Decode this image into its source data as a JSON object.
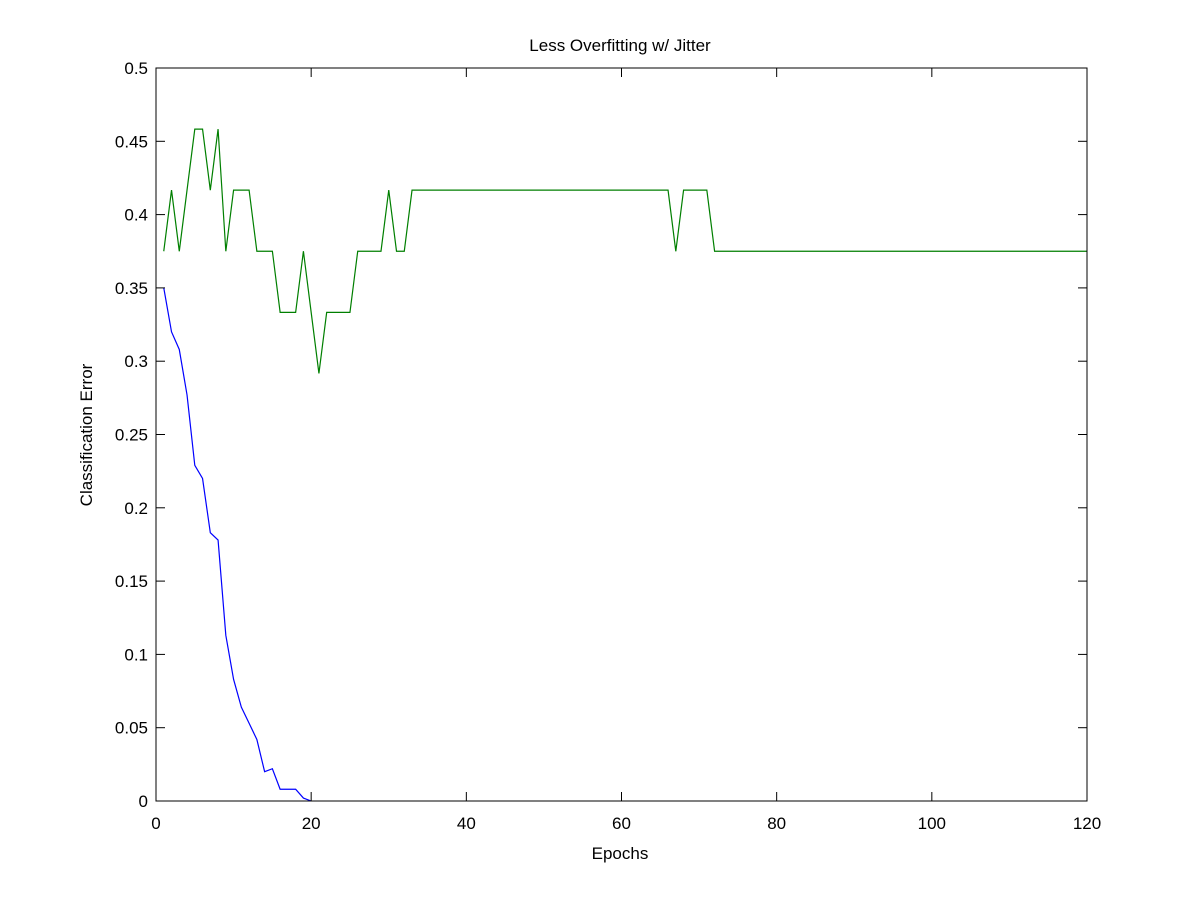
{
  "chart_data": {
    "type": "line",
    "title": "Less Overfitting w/ Jitter",
    "xlabel": "Epochs",
    "ylabel": "Classification Error",
    "xlim": [
      0,
      120
    ],
    "ylim": [
      0,
      0.5
    ],
    "xticks": [
      0,
      20,
      40,
      60,
      80,
      100,
      120
    ],
    "xtick_labels": [
      "0",
      "20",
      "40",
      "60",
      "80",
      "100",
      "120"
    ],
    "yticks": [
      0,
      0.05,
      0.1,
      0.15,
      0.2,
      0.25,
      0.3,
      0.35,
      0.4,
      0.45,
      0.5
    ],
    "ytick_labels": [
      "0",
      "0.05",
      "0.1",
      "0.15",
      "0.2",
      "0.25",
      "0.3",
      "0.35",
      "0.4",
      "0.45",
      "0.5"
    ],
    "grid": false,
    "legend": "none",
    "series": [
      {
        "color": "#0000ff",
        "x": [
          1,
          2,
          3,
          4,
          5,
          6,
          7,
          8,
          9,
          10,
          11,
          12,
          13,
          14,
          15,
          16,
          17,
          18,
          19,
          20
        ],
        "values": [
          0.35,
          0.32,
          0.308,
          0.277,
          0.229,
          0.22,
          0.183,
          0.178,
          0.113,
          0.083,
          0.064,
          0.053,
          0.042,
          0.02,
          0.022,
          0.008,
          0.008,
          0.008,
          0.002,
          0.0
        ]
      },
      {
        "color": "#007f00",
        "x": [
          1,
          2,
          3,
          4,
          5,
          6,
          7,
          8,
          9,
          10,
          11,
          12,
          13,
          14,
          15,
          16,
          17,
          18,
          19,
          20,
          21,
          22,
          23,
          24,
          25,
          26,
          27,
          28,
          29,
          30,
          31,
          32,
          33,
          34,
          35,
          36,
          37,
          38,
          39,
          40,
          41,
          42,
          43,
          44,
          45,
          46,
          47,
          48,
          49,
          50,
          51,
          52,
          53,
          54,
          55,
          56,
          57,
          58,
          59,
          60,
          61,
          62,
          63,
          64,
          65,
          66,
          67,
          68,
          69,
          70,
          71,
          72,
          73,
          74,
          75,
          76,
          77,
          78,
          79,
          80,
          81,
          82,
          83,
          84,
          85,
          86,
          87,
          88,
          89,
          90,
          91,
          92,
          93,
          94,
          95,
          96,
          97,
          98,
          99,
          100,
          101,
          102,
          103,
          104,
          105,
          106,
          107,
          108,
          109,
          110,
          111,
          112,
          113,
          114,
          115,
          116,
          117,
          118,
          119,
          120
        ],
        "values": [
          0.375,
          0.4167,
          0.375,
          0.4167,
          0.4583,
          0.4583,
          0.4167,
          0.4583,
          0.375,
          0.4167,
          0.4167,
          0.4167,
          0.375,
          0.375,
          0.375,
          0.3333,
          0.3333,
          0.3333,
          0.375,
          0.3333,
          0.2917,
          0.3333,
          0.3333,
          0.3333,
          0.3333,
          0.375,
          0.375,
          0.375,
          0.375,
          0.4167,
          0.375,
          0.375,
          0.4167,
          0.4167,
          0.4167,
          0.4167,
          0.4167,
          0.4167,
          0.4167,
          0.4167,
          0.4167,
          0.4167,
          0.4167,
          0.4167,
          0.4167,
          0.4167,
          0.4167,
          0.4167,
          0.4167,
          0.4167,
          0.4167,
          0.4167,
          0.4167,
          0.4167,
          0.4167,
          0.4167,
          0.4167,
          0.4167,
          0.4167,
          0.4167,
          0.4167,
          0.4167,
          0.4167,
          0.4167,
          0.4167,
          0.4167,
          0.375,
          0.4167,
          0.4167,
          0.4167,
          0.4167,
          0.375,
          0.375,
          0.375,
          0.375,
          0.375,
          0.375,
          0.375,
          0.375,
          0.375,
          0.375,
          0.375,
          0.375,
          0.375,
          0.375,
          0.375,
          0.375,
          0.375,
          0.375,
          0.375,
          0.375,
          0.375,
          0.375,
          0.375,
          0.375,
          0.375,
          0.375,
          0.375,
          0.375,
          0.375,
          0.375,
          0.375,
          0.375,
          0.375,
          0.375,
          0.375,
          0.375,
          0.375,
          0.375,
          0.375,
          0.375,
          0.375,
          0.375,
          0.375,
          0.375,
          0.375,
          0.375,
          0.375,
          0.375,
          0.375
        ]
      }
    ]
  }
}
